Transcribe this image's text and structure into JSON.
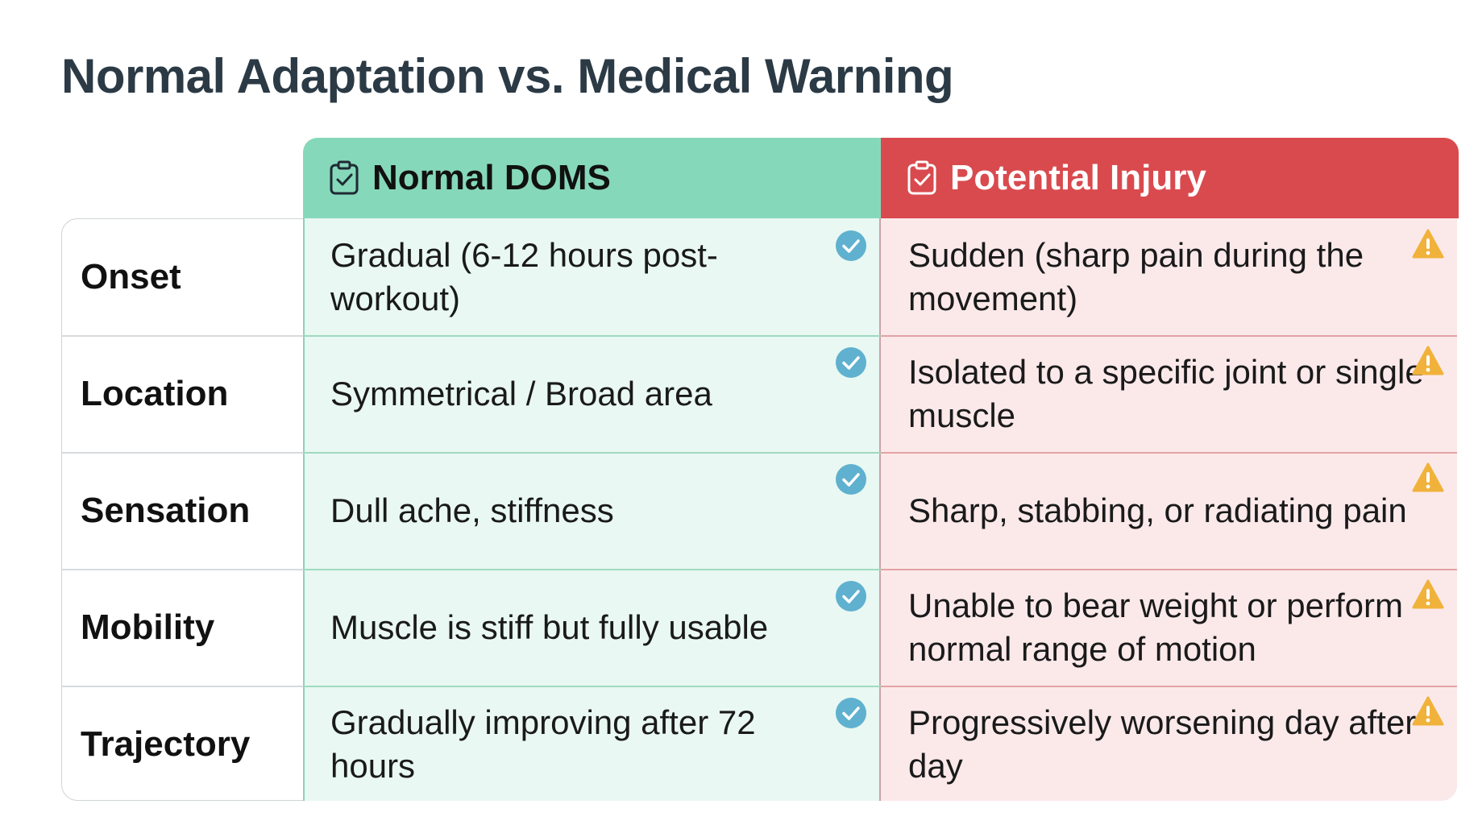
{
  "title": "Normal Adaptation vs. Medical Warning",
  "columns": {
    "normal": {
      "label": "Normal DOMS",
      "icon": "clipboard-check-icon",
      "color": "#86d8bb"
    },
    "injury": {
      "label": "Potential Injury",
      "icon": "clipboard-check-icon",
      "color": "#d94a4e"
    }
  },
  "rows": [
    {
      "label": "Onset",
      "normal": "Gradual (6-12 hours post-workout)",
      "injury": "Sudden (sharp pain during the movement)"
    },
    {
      "label": "Location",
      "normal": "Symmetrical / Broad area",
      "injury": "Isolated to a specific joint or single muscle"
    },
    {
      "label": "Sensation",
      "normal": "Dull ache, stiffness",
      "injury": "Sharp, stabbing, or radiating pain"
    },
    {
      "label": "Mobility",
      "normal": "Muscle is stiff but fully usable",
      "injury": "Unable to bear weight or perform normal range of motion"
    },
    {
      "label": "Trajectory",
      "normal": "Gradually improving after 72 hours",
      "injury": "Progressively worsening day after day"
    }
  ],
  "badges": {
    "normal": "check-circle-icon",
    "injury": "warning-triangle-icon"
  }
}
